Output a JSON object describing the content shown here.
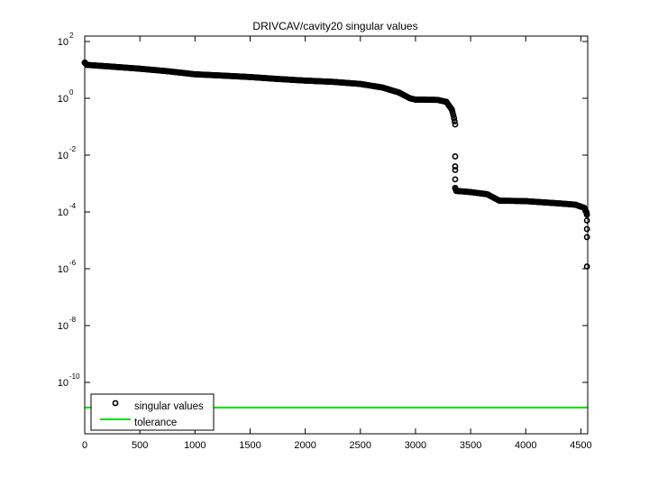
{
  "chart_data": {
    "type": "scatter",
    "title": "DRIVCAV/cavity20 singular values",
    "xlabel": "",
    "ylabel": "",
    "yscale": "log",
    "xlim": [
      0,
      4562
    ],
    "ylim_exponent": [
      -12,
      2.4
    ],
    "grid": false,
    "legend_position": "lower-left",
    "x_ticks": [
      0,
      500,
      1000,
      1500,
      2000,
      2500,
      3000,
      3500,
      4000,
      4500
    ],
    "x_tick_labels": [
      "0",
      "500",
      "1000",
      "1500",
      "2000",
      "2500",
      "3000",
      "3500",
      "4000",
      "4500"
    ],
    "y_ticks_exponent": [
      2,
      0,
      -2,
      -4,
      -6,
      -8,
      -10
    ],
    "y_tick_labels": [
      "10^2",
      "10^0",
      "10^-2",
      "10^-4",
      "10^-6",
      "10^-8",
      "10^-10"
    ],
    "series": [
      {
        "name": "singular values",
        "marker": "circle-open",
        "color": "#000000",
        "points": [
          [
            1,
            18
          ],
          [
            20,
            15
          ],
          [
            250,
            13
          ],
          [
            500,
            11
          ],
          [
            750,
            9
          ],
          [
            1000,
            7
          ],
          [
            1250,
            6.3
          ],
          [
            1500,
            5.6
          ],
          [
            1750,
            4.8
          ],
          [
            2000,
            4.2
          ],
          [
            2250,
            3.8
          ],
          [
            2500,
            3.2
          ],
          [
            2700,
            2.4
          ],
          [
            2850,
            1.6
          ],
          [
            2950,
            1.0
          ],
          [
            3000,
            0.9
          ],
          [
            3200,
            0.88
          ],
          [
            3280,
            0.75
          ],
          [
            3330,
            0.4
          ],
          [
            3350,
            0.2
          ],
          [
            3360,
            0.12
          ],
          [
            3360,
            0.009
          ],
          [
            3360,
            0.004
          ],
          [
            3360,
            0.003
          ],
          [
            3360,
            0.0014
          ],
          [
            3360,
            0.0007
          ],
          [
            3370,
            0.00055
          ],
          [
            3500,
            0.0005
          ],
          [
            3650,
            0.00042
          ],
          [
            3760,
            0.00025
          ],
          [
            4000,
            0.00024
          ],
          [
            4300,
            0.0002
          ],
          [
            4450,
            0.00018
          ],
          [
            4530,
            0.00014
          ],
          [
            4550,
            0.0001
          ],
          [
            4555,
            8e-05
          ],
          [
            4555,
            5e-05
          ],
          [
            4555,
            2.5e-05
          ],
          [
            4555,
            1.3e-05
          ],
          [
            4555,
            1.2e-06
          ]
        ]
      },
      {
        "name": "tolerance",
        "marker": "line",
        "color": "#00dd00",
        "value": 1.3e-11
      }
    ]
  },
  "legend": {
    "items": [
      {
        "label": "singular values"
      },
      {
        "label": "tolerance"
      }
    ]
  }
}
